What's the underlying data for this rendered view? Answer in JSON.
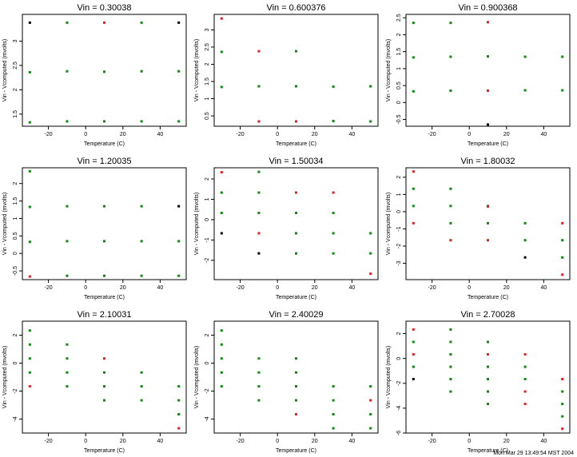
{
  "footer": "Mon Mar 29 13:49:54 MST 2004",
  "colors": {
    "green": "#118811",
    "red": "#dd2222",
    "black": "#000000",
    "frame": "#000000"
  },
  "chart_data": [
    {
      "type": "scatter",
      "title": "Vin = 0.30038",
      "xlabel": "Temperature (C)",
      "ylabel": "Vin - Vcomputed (mvolts)",
      "xlim": [
        -34,
        54
      ],
      "ylim": [
        1.25,
        3.55
      ],
      "xticks": [
        -20,
        0,
        20,
        40
      ],
      "yticks": [
        1.5,
        2.0,
        2.5,
        3.0
      ],
      "x": [
        -30,
        -10,
        10,
        30,
        50
      ],
      "levels": [
        1.33,
        2.36,
        3.38
      ],
      "points": [
        [
          -30,
          3.38,
          "b"
        ],
        [
          -10,
          3.38,
          "g"
        ],
        [
          10,
          3.38,
          "r"
        ],
        [
          30,
          3.38,
          "g"
        ],
        [
          50,
          3.38,
          "b"
        ],
        [
          -30,
          2.36,
          "g"
        ],
        [
          -10,
          2.38,
          "g"
        ],
        [
          10,
          2.37,
          "g"
        ],
        [
          30,
          2.38,
          "g"
        ],
        [
          50,
          2.38,
          "g"
        ],
        [
          -30,
          1.33,
          "g"
        ],
        [
          -10,
          1.35,
          "g"
        ],
        [
          10,
          1.35,
          "g"
        ],
        [
          30,
          1.35,
          "g"
        ],
        [
          50,
          1.35,
          "g"
        ]
      ]
    },
    {
      "type": "scatter",
      "title": "Vin = 0.600376",
      "xlabel": "Temperature (C)",
      "ylabel": "Vin - Vcomputed (mvolts)",
      "xlim": [
        -34,
        54
      ],
      "ylim": [
        0.2,
        3.45
      ],
      "xticks": [
        -20,
        0,
        20,
        40
      ],
      "yticks": [
        0.5,
        1.0,
        1.5,
        2.0,
        2.5,
        3.0
      ],
      "points": [
        [
          -30,
          3.33,
          "r"
        ],
        [
          -30,
          2.36,
          "g"
        ],
        [
          -10,
          2.38,
          "r"
        ],
        [
          10,
          2.38,
          "g"
        ],
        [
          -30,
          1.34,
          "g"
        ],
        [
          -10,
          1.36,
          "g"
        ],
        [
          10,
          1.36,
          "g"
        ],
        [
          30,
          1.35,
          "g"
        ],
        [
          50,
          1.36,
          "g"
        ],
        [
          -10,
          0.34,
          "r"
        ],
        [
          10,
          0.34,
          "r"
        ],
        [
          30,
          0.35,
          "g"
        ],
        [
          50,
          0.34,
          "g"
        ]
      ]
    },
    {
      "type": "scatter",
      "title": "Vin = 0.900368",
      "xlabel": "Temperature (C)",
      "ylabel": "Vin - Vcomputed (mvolts)",
      "xlim": [
        -34,
        54
      ],
      "ylim": [
        -0.7,
        2.6
      ],
      "xticks": [
        -20,
        0,
        20,
        40
      ],
      "yticks": [
        -0.5,
        0.0,
        0.5,
        1.0,
        1.5,
        2.0,
        2.5
      ],
      "points": [
        [
          -30,
          2.35,
          "g"
        ],
        [
          -10,
          2.35,
          "g"
        ],
        [
          10,
          2.37,
          "r"
        ],
        [
          -30,
          1.33,
          "g"
        ],
        [
          -10,
          1.35,
          "g"
        ],
        [
          10,
          1.36,
          "g"
        ],
        [
          30,
          1.35,
          "g"
        ],
        [
          50,
          1.35,
          "g"
        ],
        [
          -30,
          0.33,
          "g"
        ],
        [
          -10,
          0.35,
          "g"
        ],
        [
          10,
          0.35,
          "r"
        ],
        [
          30,
          0.36,
          "g"
        ],
        [
          50,
          0.36,
          "g"
        ],
        [
          10,
          -0.65,
          "b"
        ]
      ]
    },
    {
      "type": "scatter",
      "title": "Vin = 1.20035",
      "xlabel": "Temperature (C)",
      "ylabel": "Vin - Vcomputed (mvolts)",
      "xlim": [
        -34,
        54
      ],
      "ylim": [
        -0.75,
        2.45
      ],
      "xticks": [
        -20,
        0,
        20,
        40
      ],
      "yticks": [
        -0.5,
        0.0,
        0.5,
        1.0,
        1.5,
        2.0
      ],
      "points": [
        [
          -30,
          2.35,
          "g"
        ],
        [
          -30,
          1.33,
          "g"
        ],
        [
          -10,
          1.35,
          "g"
        ],
        [
          10,
          1.35,
          "g"
        ],
        [
          30,
          1.35,
          "g"
        ],
        [
          50,
          1.35,
          "b"
        ],
        [
          -30,
          0.33,
          "g"
        ],
        [
          -10,
          0.35,
          "g"
        ],
        [
          10,
          0.35,
          "g"
        ],
        [
          30,
          0.35,
          "g"
        ],
        [
          50,
          0.35,
          "g"
        ],
        [
          -30,
          -0.66,
          "r"
        ],
        [
          -10,
          -0.64,
          "g"
        ],
        [
          10,
          -0.64,
          "g"
        ],
        [
          30,
          -0.64,
          "g"
        ],
        [
          50,
          -0.64,
          "g"
        ]
      ]
    },
    {
      "type": "scatter",
      "title": "Vin = 1.50034",
      "xlabel": "Temperature (C)",
      "ylabel": "Vin - Vcomputed (mvolts)",
      "xlim": [
        -34,
        54
      ],
      "ylim": [
        -2.95,
        2.55
      ],
      "xticks": [
        -20,
        0,
        20,
        40
      ],
      "yticks": [
        -2,
        -1,
        0,
        1,
        2
      ],
      "points": [
        [
          -30,
          2.33,
          "r"
        ],
        [
          -10,
          2.35,
          "g"
        ],
        [
          -30,
          1.33,
          "g"
        ],
        [
          -10,
          1.33,
          "g"
        ],
        [
          10,
          1.33,
          "r"
        ],
        [
          30,
          1.33,
          "r"
        ],
        [
          -30,
          0.33,
          "g"
        ],
        [
          -10,
          0.33,
          "g"
        ],
        [
          10,
          0.33,
          "g"
        ],
        [
          30,
          0.33,
          "g"
        ],
        [
          -30,
          -0.67,
          "b"
        ],
        [
          -10,
          -0.67,
          "r"
        ],
        [
          10,
          -0.67,
          "g"
        ],
        [
          30,
          -0.67,
          "g"
        ],
        [
          50,
          -0.67,
          "g"
        ],
        [
          -10,
          -1.66,
          "b"
        ],
        [
          10,
          -1.66,
          "g"
        ],
        [
          30,
          -1.66,
          "g"
        ],
        [
          50,
          -1.66,
          "g"
        ],
        [
          50,
          -2.66,
          "r"
        ]
      ]
    },
    {
      "type": "scatter",
      "title": "Vin = 1.80032",
      "xlabel": "Temperature (C)",
      "ylabel": "Vin - Vcomputed (mvolts)",
      "xlim": [
        -34,
        54
      ],
      "ylim": [
        -3.95,
        2.55
      ],
      "xticks": [
        -20,
        0,
        20,
        40
      ],
      "yticks": [
        -3,
        -2,
        -1,
        0,
        1,
        2
      ],
      "points": [
        [
          -30,
          2.33,
          "r"
        ],
        [
          -30,
          1.33,
          "g"
        ],
        [
          -10,
          1.33,
          "g"
        ],
        [
          -30,
          0.33,
          "g"
        ],
        [
          -10,
          0.33,
          "g"
        ],
        [
          10,
          0.33,
          "g"
        ],
        [
          10,
          0.3,
          "r"
        ],
        [
          -30,
          -0.67,
          "r"
        ],
        [
          -10,
          -0.67,
          "g"
        ],
        [
          10,
          -0.67,
          "g"
        ],
        [
          30,
          -0.67,
          "g"
        ],
        [
          50,
          -0.67,
          "r"
        ],
        [
          -10,
          -1.66,
          "r"
        ],
        [
          10,
          -1.66,
          "r"
        ],
        [
          30,
          -1.66,
          "g"
        ],
        [
          50,
          -1.66,
          "g"
        ],
        [
          30,
          -2.66,
          "b"
        ],
        [
          50,
          -2.66,
          "g"
        ],
        [
          50,
          -3.66,
          "r"
        ]
      ]
    },
    {
      "type": "scatter",
      "title": "Vin = 2.10031",
      "xlabel": "Temperature (C)",
      "ylabel": "Vin - Vcomputed (mvolts)",
      "xlim": [
        -34,
        54
      ],
      "ylim": [
        -5.0,
        3.0
      ],
      "xticks": [
        -20,
        0,
        20,
        40
      ],
      "yticks": [
        -4,
        -2,
        0,
        2
      ],
      "points": [
        [
          -30,
          2.33,
          "g"
        ],
        [
          -30,
          1.33,
          "g"
        ],
        [
          -10,
          1.33,
          "g"
        ],
        [
          -30,
          0.33,
          "g"
        ],
        [
          -10,
          0.33,
          "g"
        ],
        [
          10,
          0.33,
          "r"
        ],
        [
          -30,
          -0.67,
          "g"
        ],
        [
          -10,
          -0.67,
          "g"
        ],
        [
          10,
          -0.67,
          "g"
        ],
        [
          30,
          -0.67,
          "g"
        ],
        [
          -30,
          -1.66,
          "r"
        ],
        [
          -10,
          -1.66,
          "g"
        ],
        [
          10,
          -1.66,
          "g"
        ],
        [
          30,
          -1.66,
          "g"
        ],
        [
          50,
          -1.66,
          "g"
        ],
        [
          10,
          -2.66,
          "g"
        ],
        [
          30,
          -2.66,
          "g"
        ],
        [
          50,
          -2.66,
          "g"
        ],
        [
          50,
          -3.66,
          "g"
        ],
        [
          50,
          -4.66,
          "r"
        ]
      ]
    },
    {
      "type": "scatter",
      "title": "Vin = 2.40029",
      "xlabel": "Temperature (C)",
      "ylabel": "Vin - Vcomputed (mvolts)",
      "xlim": [
        -34,
        54
      ],
      "ylim": [
        -5.0,
        3.0
      ],
      "xticks": [
        -20,
        0,
        20,
        40
      ],
      "yticks": [
        -4,
        -2,
        0,
        2
      ],
      "points": [
        [
          -30,
          2.33,
          "g"
        ],
        [
          -30,
          1.33,
          "g"
        ],
        [
          -30,
          0.33,
          "g"
        ],
        [
          -10,
          0.33,
          "g"
        ],
        [
          10,
          0.33,
          "g"
        ],
        [
          -30,
          -0.67,
          "g"
        ],
        [
          -10,
          -0.67,
          "g"
        ],
        [
          10,
          -0.67,
          "g"
        ],
        [
          -30,
          -1.66,
          "g"
        ],
        [
          -10,
          -1.66,
          "g"
        ],
        [
          10,
          -1.66,
          "g"
        ],
        [
          30,
          -1.66,
          "g"
        ],
        [
          50,
          -1.66,
          "g"
        ],
        [
          -10,
          -2.66,
          "g"
        ],
        [
          10,
          -2.66,
          "g"
        ],
        [
          30,
          -2.66,
          "g"
        ],
        [
          50,
          -2.66,
          "r"
        ],
        [
          10,
          -3.66,
          "r"
        ],
        [
          30,
          -3.66,
          "g"
        ],
        [
          50,
          -3.66,
          "g"
        ],
        [
          30,
          -4.66,
          "g"
        ],
        [
          50,
          -4.66,
          "g"
        ]
      ]
    },
    {
      "type": "scatter",
      "title": "Vin = 2.70028",
      "xlabel": "Temperature (C)",
      "ylabel": "Vin - Vcomputed (mvolts)",
      "xlim": [
        -34,
        54
      ],
      "ylim": [
        -6.0,
        3.0
      ],
      "xticks": [
        -20,
        0,
        20,
        40
      ],
      "yticks": [
        -6,
        -4,
        -2,
        0,
        2
      ],
      "points": [
        [
          -30,
          2.33,
          "r"
        ],
        [
          -10,
          2.33,
          "g"
        ],
        [
          -30,
          1.33,
          "g"
        ],
        [
          -10,
          1.33,
          "g"
        ],
        [
          10,
          1.33,
          "g"
        ],
        [
          -30,
          0.33,
          "r"
        ],
        [
          -10,
          0.33,
          "g"
        ],
        [
          10,
          0.33,
          "r"
        ],
        [
          30,
          0.33,
          "r"
        ],
        [
          -30,
          -0.67,
          "g"
        ],
        [
          -10,
          -0.67,
          "g"
        ],
        [
          10,
          -0.67,
          "g"
        ],
        [
          30,
          -0.67,
          "g"
        ],
        [
          -30,
          -1.66,
          "b"
        ],
        [
          -10,
          -1.66,
          "g"
        ],
        [
          10,
          -1.66,
          "g"
        ],
        [
          30,
          -1.66,
          "g"
        ],
        [
          50,
          -1.66,
          "r"
        ],
        [
          -10,
          -2.66,
          "g"
        ],
        [
          10,
          -2.66,
          "g"
        ],
        [
          30,
          -2.66,
          "r"
        ],
        [
          50,
          -2.66,
          "g"
        ],
        [
          10,
          -3.66,
          "g"
        ],
        [
          30,
          -3.66,
          "r"
        ],
        [
          50,
          -3.66,
          "g"
        ],
        [
          50,
          -4.66,
          "g"
        ],
        [
          50,
          -5.66,
          "r"
        ]
      ]
    }
  ]
}
